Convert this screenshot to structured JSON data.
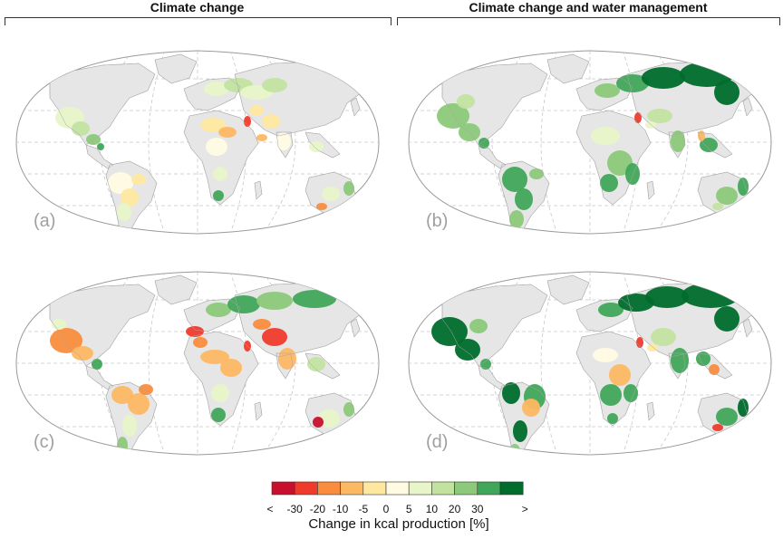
{
  "headers": {
    "left": "Climate change",
    "right": "Climate change and water management"
  },
  "panels": [
    {
      "label": "(a)"
    },
    {
      "label": "(b)"
    },
    {
      "label": "(c)"
    },
    {
      "label": "(d)"
    }
  ],
  "legend": {
    "title": "Change in kcal production [%]",
    "tick_labels": [
      "<",
      "-30",
      "-20",
      "-10",
      "-5",
      "0",
      "5",
      "10",
      "20",
      "30",
      ">"
    ],
    "colors": [
      "#c8102e",
      "#ef3b2c",
      "#f98d3d",
      "#fdb863",
      "#fee8a0",
      "#fffbe3",
      "#e8f5c8",
      "#c2e3a0",
      "#8cc97a",
      "#41a65a",
      "#006d2c"
    ]
  },
  "colors": {
    "land_gray": "#e6e6e6",
    "ocean": "#ffffff",
    "outline": "#9a9a9a",
    "grid": "#c8c8c8"
  }
}
